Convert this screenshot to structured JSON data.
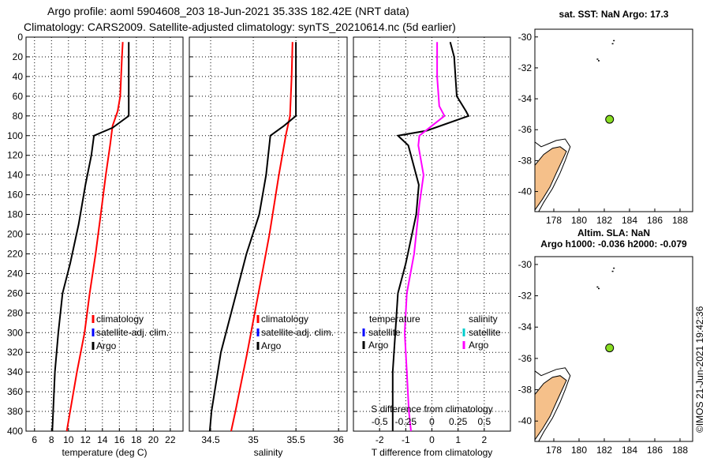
{
  "header": {
    "title_line1": "Argo profile: aoml 5904608_203 18-Jun-2021 35.33S 182.42E (NRT data)",
    "title_line2": "Climatology: CARS2009. Satellite-adjusted climatology: synTS_20210614.nc (5d earlier)"
  },
  "colors": {
    "climatology": "#ff0000",
    "satellite": "#0000ff",
    "argo": "#000000",
    "sat_salinity": "#00cccc",
    "argo_salinity": "#ff00ff",
    "land": "#f5c08a",
    "float": "#88dd22"
  },
  "depth_ticks": [
    "0",
    "20",
    "40",
    "60",
    "80",
    "100",
    "120",
    "140",
    "160",
    "180",
    "200",
    "220",
    "240",
    "260",
    "280",
    "300",
    "320",
    "340",
    "360",
    "380",
    "400"
  ],
  "chart_data": [
    {
      "type": "line",
      "xlabel": "temperature (deg C)",
      "x_ticks": [
        "6",
        "8",
        "10",
        "12",
        "14",
        "16",
        "18",
        "20",
        "22"
      ],
      "xlim": [
        5,
        23.5
      ],
      "ylim": [
        400,
        0
      ],
      "legend": [
        "climatology",
        "satellite-adj. clim.",
        "Argo"
      ],
      "series": [
        {
          "name": "climatology",
          "depth": [
            5,
            20,
            40,
            60,
            75,
            90,
            110,
            140,
            180,
            220,
            260,
            300,
            340,
            380,
            400
          ],
          "values": [
            16.4,
            16.3,
            16.2,
            16.1,
            15.8,
            15.2,
            14.9,
            14.4,
            13.8,
            13.2,
            12.5,
            11.9,
            11.0,
            10.2,
            9.8
          ]
        },
        {
          "name": "Argo",
          "depth": [
            5,
            20,
            40,
            60,
            80,
            92,
            100,
            120,
            150,
            190,
            230,
            260,
            300,
            340,
            380,
            400
          ],
          "values": [
            17.1,
            17.1,
            17.1,
            17.1,
            17.1,
            15.2,
            13.0,
            12.7,
            12.0,
            11.2,
            10.2,
            9.3,
            8.8,
            8.4,
            8.2,
            8.1
          ]
        }
      ]
    },
    {
      "type": "line",
      "xlabel": "salinity",
      "x_ticks": [
        "34.5",
        "35",
        "35.5",
        "36"
      ],
      "xlim": [
        34.25,
        36.1
      ],
      "ylim": [
        400,
        0
      ],
      "legend": [
        "climatology",
        "satellite-adj. clim.",
        "Argo"
      ],
      "series": [
        {
          "name": "climatology",
          "depth": [
            5,
            40,
            80,
            100,
            140,
            200,
            260,
            320,
            380,
            400
          ],
          "values": [
            35.46,
            35.45,
            35.43,
            35.38,
            35.3,
            35.19,
            35.06,
            34.93,
            34.79,
            34.74
          ]
        },
        {
          "name": "Argo",
          "depth": [
            5,
            20,
            60,
            80,
            90,
            100,
            140,
            180,
            220,
            260,
            320,
            380,
            400
          ],
          "values": [
            35.5,
            35.5,
            35.5,
            35.5,
            35.36,
            35.2,
            35.15,
            35.07,
            34.92,
            34.8,
            34.62,
            34.51,
            34.49
          ]
        }
      ]
    },
    {
      "type": "line",
      "xlabel": "T difference from climatology",
      "x_ticks": [
        "-2",
        "-1",
        "0",
        "1",
        "2"
      ],
      "xlim": [
        -3,
        3
      ],
      "ylim": [
        400,
        0
      ],
      "secondary_xlabel": "S difference from climatology",
      "secondary_ticks": [
        "-0.5",
        "-0.25",
        "0",
        "0.25",
        "0.5"
      ],
      "legend_temperature": {
        "header": "temperature",
        "items": [
          "satellite",
          "Argo"
        ]
      },
      "legend_salinity": {
        "header": "salinity",
        "items": [
          "satellite",
          "Argo"
        ]
      },
      "series": [
        {
          "name": "T difference (Argo)",
          "depth": [
            5,
            20,
            60,
            75,
            80,
            95,
            100,
            110,
            150,
            180,
            230,
            260,
            300,
            340,
            380,
            400
          ],
          "values": [
            0.7,
            0.85,
            0.95,
            1.3,
            1.4,
            -0.2,
            -1.3,
            -0.9,
            -0.5,
            -0.6,
            -1.0,
            -1.3,
            -1.4,
            -1.5,
            -1.5,
            -1.5
          ]
        },
        {
          "name": "S difference (Argo)",
          "depth": [
            5,
            40,
            70,
            80,
            90,
            100,
            110,
            140,
            170,
            220,
            260,
            300,
            340,
            380,
            400
          ],
          "values": [
            0.05,
            0.05,
            0.07,
            0.12,
            0.0,
            -0.12,
            -0.13,
            -0.08,
            -0.12,
            -0.17,
            -0.24,
            -0.26,
            -0.24,
            -0.22,
            -0.2
          ]
        }
      ]
    },
    {
      "type": "scatter",
      "title": "sat. SST: NaN Argo: 17.3",
      "x_ticks": [
        "178",
        "180",
        "182",
        "184",
        "186",
        "188"
      ],
      "y_ticks": [
        "-30",
        "-32",
        "-34",
        "-36",
        "-38",
        "-40"
      ],
      "xlim": [
        176.5,
        189
      ],
      "ylim": [
        -41.3,
        -29.5
      ],
      "float_position": {
        "lon": 182.42,
        "lat": -35.33
      }
    },
    {
      "type": "scatter",
      "title_line1": "Altim. SLA: NaN",
      "title_line2": "Argo h1000: -0.036 h2000: -0.079",
      "x_ticks": [
        "178",
        "180",
        "182",
        "184",
        "186",
        "188"
      ],
      "y_ticks": [
        "-30",
        "-32",
        "-34",
        "-36",
        "-38",
        "-40"
      ],
      "xlim": [
        176.5,
        189
      ],
      "ylim": [
        -41.3,
        -29.5
      ],
      "float_position": {
        "lon": 182.42,
        "lat": -35.33
      }
    }
  ],
  "footer": {
    "stamp": "©IMOS 21-Jun-2021 19:42:36"
  }
}
